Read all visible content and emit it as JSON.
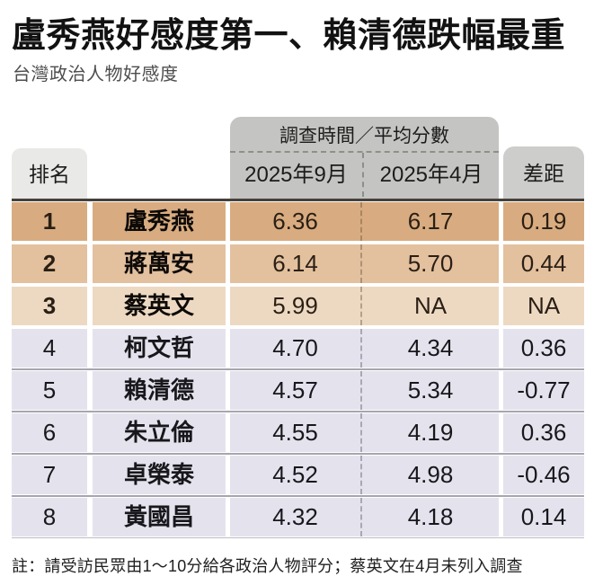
{
  "title": "盧秀燕好感度第一、賴清德跌幅最重",
  "subtitle": "台灣政治人物好感度",
  "note": "註：請受訪民眾由1～10分給各政治人物評分；蔡英文在4月未列入調查",
  "chart_data": {
    "type": "table",
    "title": "盧秀燕好感度第一、賴清德跌幅最重",
    "subtitle": "台灣政治人物好感度",
    "group_header": "調查時間／平均分數",
    "columns": [
      "排名",
      "2025年9月",
      "2025年4月",
      "差距"
    ],
    "name_column_label": "",
    "rows": [
      [
        "1",
        "盧秀燕",
        "6.36",
        "6.17",
        "0.19"
      ],
      [
        "2",
        "蔣萬安",
        "6.14",
        "5.70",
        "0.44"
      ],
      [
        "3",
        "蔡英文",
        "5.99",
        "NA",
        "NA"
      ],
      [
        "4",
        "柯文哲",
        "4.70",
        "4.34",
        "0.36"
      ],
      [
        "5",
        "賴清德",
        "4.57",
        "5.34",
        "-0.77"
      ],
      [
        "6",
        "朱立倫",
        "4.55",
        "4.19",
        "0.36"
      ],
      [
        "7",
        "卓榮泰",
        "4.52",
        "4.98",
        "-0.46"
      ],
      [
        "8",
        "黃國昌",
        "4.32",
        "4.18",
        "0.14"
      ]
    ],
    "note": "註：請受訪民眾由1～10分給各政治人物評分；蔡英文在4月未列入調查",
    "score_scale": "1～10",
    "layout": {
      "highlight_top3": true,
      "na_rows": [
        "蔡英文"
      ]
    }
  },
  "colors": {
    "rank1_row": "#D8AC80",
    "rank2_row": "#E3C09E",
    "rank3_row": "#EDD9C2",
    "other_rows": "#E4E3ED",
    "group_header_bg": "#C4C4C2",
    "diff_header_bg": "#CDCDCB",
    "rank_header_bg": "#E9E9E7",
    "table_top_border": "#46413b"
  }
}
